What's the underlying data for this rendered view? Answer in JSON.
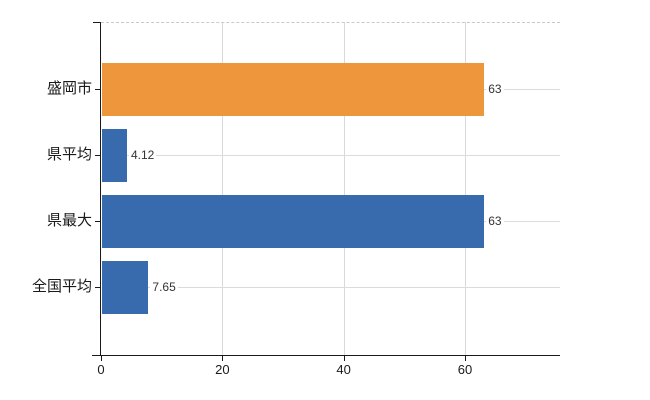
{
  "chart_data": {
    "type": "bar",
    "orientation": "horizontal",
    "title": "",
    "xlabel": "",
    "ylabel": "",
    "categories": [
      "盛岡市",
      "県平均",
      "県最大",
      "全国平均"
    ],
    "values": [
      63,
      4.12,
      63,
      7.65
    ],
    "value_labels": [
      "63",
      "4.12",
      "63",
      "7.65"
    ],
    "bar_colors": [
      "#EE963C",
      "#376BAD",
      "#376BAD",
      "#376BAD"
    ],
    "x_tick_values": [
      0,
      20,
      40,
      60
    ],
    "x_tick_labels": [
      "0",
      "20",
      "40",
      "60"
    ],
    "xlim": [
      0,
      75.7
    ],
    "grid": true,
    "grid_horizontal_at_categories": true,
    "legend": false,
    "top_border_style": "dashed",
    "colors": {
      "accent_orange": "#EE963C",
      "accent_blue": "#376BAD",
      "grid": "#d9d9d9",
      "axis": "#1a1a1a",
      "top_border": "#c9c9c9",
      "text": "#1a1a1a"
    }
  }
}
